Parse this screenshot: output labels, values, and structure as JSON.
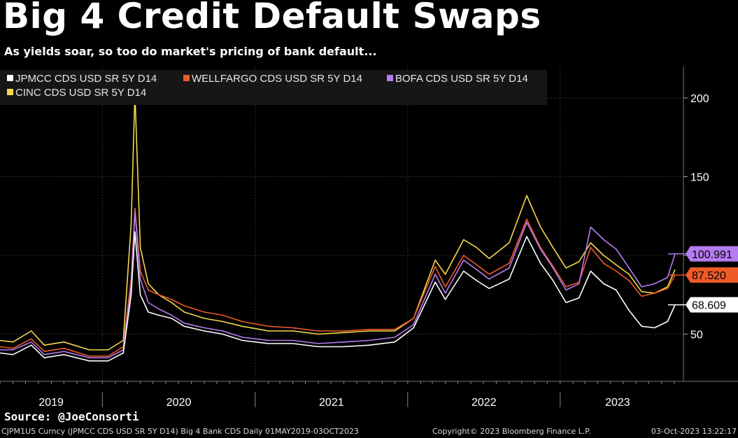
{
  "header": {
    "title": "Big 4 Credit Default Swaps",
    "subtitle": "As yields soar, so too do market's pricing of bank default..."
  },
  "source": "Source: @JoeConsorti",
  "footer": {
    "left": "CJPM1U5 Curncy (JPMCC CDS USD SR 5Y D14) Big 4 Bank CDS  Daily 01MAY2019-03OCT2023",
    "middle": "Copyright© 2023 Bloomberg Finance L.P.",
    "right": "03-Oct-2023 13:22:17"
  },
  "colors": {
    "background": "#000000",
    "grid": "#555555",
    "axis_text": "#ffffff"
  },
  "chart_data": {
    "type": "line",
    "xlim": [
      "2019-05-01",
      "2023-10-03"
    ],
    "ylim": [
      20,
      220
    ],
    "yticks": [
      50,
      100,
      150,
      200
    ],
    "ytick_labels": [
      "50",
      "",
      "150",
      "200"
    ],
    "xtick_labels": [
      "2019",
      "2020",
      "2021",
      "2022",
      "2023"
    ],
    "grid": true,
    "legend_position": "top-left",
    "series": [
      {
        "name": "JPMCC CDS USD SR 5Y D14",
        "color": "#ffffff",
        "last": "68.609",
        "data": [
          [
            "2019-05-01",
            38
          ],
          [
            "2019-06-01",
            37
          ],
          [
            "2019-07-15",
            43
          ],
          [
            "2019-08-15",
            35
          ],
          [
            "2019-10-01",
            37
          ],
          [
            "2019-12-01",
            33
          ],
          [
            "2020-01-15",
            33
          ],
          [
            "2020-02-20",
            38
          ],
          [
            "2020-03-10",
            75
          ],
          [
            "2020-03-19",
            115
          ],
          [
            "2020-04-01",
            75
          ],
          [
            "2020-04-20",
            64
          ],
          [
            "2020-05-15",
            62
          ],
          [
            "2020-06-15",
            60
          ],
          [
            "2020-07-15",
            55
          ],
          [
            "2020-09-01",
            52
          ],
          [
            "2020-10-15",
            50
          ],
          [
            "2020-12-01",
            46
          ],
          [
            "2021-02-01",
            44
          ],
          [
            "2021-04-01",
            44
          ],
          [
            "2021-06-01",
            42
          ],
          [
            "2021-08-01",
            42
          ],
          [
            "2021-10-01",
            43
          ],
          [
            "2021-12-01",
            45
          ],
          [
            "2022-01-15",
            54
          ],
          [
            "2022-03-08",
            83
          ],
          [
            "2022-04-01",
            72
          ],
          [
            "2022-05-15",
            90
          ],
          [
            "2022-06-15",
            84
          ],
          [
            "2022-07-15",
            79
          ],
          [
            "2022-09-01",
            85
          ],
          [
            "2022-10-13",
            112
          ],
          [
            "2022-11-15",
            95
          ],
          [
            "2022-12-15",
            84
          ],
          [
            "2023-01-15",
            70
          ],
          [
            "2023-02-15",
            73
          ],
          [
            "2023-03-15",
            90
          ],
          [
            "2023-04-15",
            82
          ],
          [
            "2023-05-15",
            78
          ],
          [
            "2023-06-15",
            65
          ],
          [
            "2023-07-15",
            55
          ],
          [
            "2023-08-15",
            54
          ],
          [
            "2023-09-15",
            58
          ],
          [
            "2023-10-03",
            68.609
          ]
        ]
      },
      {
        "name": "WELLFARGO CDS USD SR 5Y D14",
        "color": "#f05a28",
        "last": "87.520",
        "data": [
          [
            "2019-05-01",
            42
          ],
          [
            "2019-06-01",
            41
          ],
          [
            "2019-07-15",
            47
          ],
          [
            "2019-08-15",
            39
          ],
          [
            "2019-10-01",
            41
          ],
          [
            "2019-12-01",
            36
          ],
          [
            "2020-01-15",
            36
          ],
          [
            "2020-02-20",
            42
          ],
          [
            "2020-03-10",
            85
          ],
          [
            "2020-03-19",
            130
          ],
          [
            "2020-04-01",
            90
          ],
          [
            "2020-04-20",
            78
          ],
          [
            "2020-05-15",
            75
          ],
          [
            "2020-06-15",
            72
          ],
          [
            "2020-07-15",
            68
          ],
          [
            "2020-09-01",
            64
          ],
          [
            "2020-10-15",
            62
          ],
          [
            "2020-12-01",
            58
          ],
          [
            "2021-02-01",
            55
          ],
          [
            "2021-04-01",
            54
          ],
          [
            "2021-06-01",
            52
          ],
          [
            "2021-08-01",
            52
          ],
          [
            "2021-10-01",
            53
          ],
          [
            "2021-12-01",
            53
          ],
          [
            "2022-01-15",
            60
          ],
          [
            "2022-03-08",
            93
          ],
          [
            "2022-04-01",
            80
          ],
          [
            "2022-05-15",
            100
          ],
          [
            "2022-06-15",
            94
          ],
          [
            "2022-07-15",
            88
          ],
          [
            "2022-09-01",
            95
          ],
          [
            "2022-10-13",
            123
          ],
          [
            "2022-11-15",
            105
          ],
          [
            "2022-12-15",
            93
          ],
          [
            "2023-01-15",
            80
          ],
          [
            "2023-02-15",
            83
          ],
          [
            "2023-03-15",
            105
          ],
          [
            "2023-04-15",
            95
          ],
          [
            "2023-05-15",
            90
          ],
          [
            "2023-06-15",
            84
          ],
          [
            "2023-07-15",
            74
          ],
          [
            "2023-08-15",
            76
          ],
          [
            "2023-09-15",
            79
          ],
          [
            "2023-10-03",
            87.52
          ]
        ]
      },
      {
        "name": "BOFA CDS USD SR 5Y D14",
        "color": "#b57bf0",
        "last": "100.991",
        "data": [
          [
            "2019-05-01",
            40
          ],
          [
            "2019-06-01",
            40
          ],
          [
            "2019-07-15",
            45
          ],
          [
            "2019-08-15",
            37
          ],
          [
            "2019-10-01",
            39
          ],
          [
            "2019-12-01",
            35
          ],
          [
            "2020-01-15",
            35
          ],
          [
            "2020-02-20",
            40
          ],
          [
            "2020-03-10",
            80
          ],
          [
            "2020-03-19",
            128
          ],
          [
            "2020-04-01",
            85
          ],
          [
            "2020-04-20",
            70
          ],
          [
            "2020-05-15",
            66
          ],
          [
            "2020-06-15",
            62
          ],
          [
            "2020-07-15",
            57
          ],
          [
            "2020-09-01",
            54
          ],
          [
            "2020-10-15",
            52
          ],
          [
            "2020-12-01",
            48
          ],
          [
            "2021-02-01",
            46
          ],
          [
            "2021-04-01",
            46
          ],
          [
            "2021-06-01",
            44
          ],
          [
            "2021-08-01",
            45
          ],
          [
            "2021-10-01",
            46
          ],
          [
            "2021-12-01",
            48
          ],
          [
            "2022-01-15",
            56
          ],
          [
            "2022-03-08",
            88
          ],
          [
            "2022-04-01",
            76
          ],
          [
            "2022-05-15",
            97
          ],
          [
            "2022-06-15",
            91
          ],
          [
            "2022-07-15",
            85
          ],
          [
            "2022-09-01",
            92
          ],
          [
            "2022-10-13",
            121
          ],
          [
            "2022-11-15",
            104
          ],
          [
            "2022-12-15",
            92
          ],
          [
            "2023-01-15",
            78
          ],
          [
            "2023-02-15",
            82
          ],
          [
            "2023-03-15",
            118
          ],
          [
            "2023-04-15",
            110
          ],
          [
            "2023-05-15",
            104
          ],
          [
            "2023-06-15",
            92
          ],
          [
            "2023-07-15",
            80
          ],
          [
            "2023-08-15",
            82
          ],
          [
            "2023-09-15",
            86
          ],
          [
            "2023-10-03",
            100.991
          ]
        ]
      },
      {
        "name": "CINC CDS USD SR 5Y D14",
        "color": "#f5d94a",
        "last": "",
        "data": [
          [
            "2019-05-01",
            46
          ],
          [
            "2019-06-01",
            45
          ],
          [
            "2019-07-15",
            52
          ],
          [
            "2019-08-15",
            43
          ],
          [
            "2019-10-01",
            45
          ],
          [
            "2019-12-01",
            40
          ],
          [
            "2020-01-15",
            40
          ],
          [
            "2020-02-20",
            46
          ],
          [
            "2020-03-10",
            120
          ],
          [
            "2020-03-19",
            203
          ],
          [
            "2020-04-01",
            105
          ],
          [
            "2020-04-20",
            82
          ],
          [
            "2020-05-15",
            75
          ],
          [
            "2020-06-15",
            70
          ],
          [
            "2020-07-15",
            64
          ],
          [
            "2020-09-01",
            60
          ],
          [
            "2020-10-15",
            58
          ],
          [
            "2020-12-01",
            55
          ],
          [
            "2021-02-01",
            52
          ],
          [
            "2021-04-01",
            52
          ],
          [
            "2021-06-01",
            50
          ],
          [
            "2021-08-01",
            51
          ],
          [
            "2021-10-01",
            52
          ],
          [
            "2021-12-01",
            52
          ],
          [
            "2022-01-15",
            60
          ],
          [
            "2022-03-08",
            97
          ],
          [
            "2022-04-01",
            88
          ],
          [
            "2022-05-15",
            110
          ],
          [
            "2022-06-15",
            105
          ],
          [
            "2022-07-15",
            98
          ],
          [
            "2022-09-01",
            108
          ],
          [
            "2022-10-13",
            138
          ],
          [
            "2022-11-15",
            118
          ],
          [
            "2022-12-15",
            105
          ],
          [
            "2023-01-15",
            92
          ],
          [
            "2023-02-15",
            96
          ],
          [
            "2023-03-15",
            108
          ],
          [
            "2023-04-15",
            100
          ],
          [
            "2023-05-15",
            94
          ],
          [
            "2023-06-15",
            88
          ],
          [
            "2023-07-15",
            77
          ],
          [
            "2023-08-15",
            76
          ],
          [
            "2023-09-15",
            80
          ],
          [
            "2023-10-03",
            91
          ]
        ]
      }
    ]
  }
}
